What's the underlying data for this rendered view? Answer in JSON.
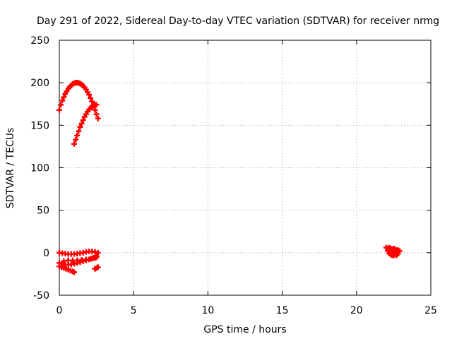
{
  "chart_data": {
    "type": "scatter",
    "title": "Day 291 of 2022, Sidereal Day-to-day VTEC variation (SDTVAR) for receiver nrmg",
    "xlabel": "GPS time / hours",
    "ylabel": "SDTVAR / TECUs",
    "xlim": [
      0,
      25
    ],
    "ylim": [
      -50,
      250
    ],
    "xticks": [
      0,
      5,
      10,
      15,
      20,
      25
    ],
    "yticks": [
      -50,
      0,
      50,
      100,
      150,
      200,
      250
    ],
    "grid": true,
    "legend": "none",
    "marker": "plus",
    "color": "#ff0000",
    "series": [
      {
        "values": [
          [
            0.0,
            168
          ],
          [
            0.1,
            174
          ],
          [
            0.2,
            179
          ],
          [
            0.3,
            183
          ],
          [
            0.4,
            187
          ],
          [
            0.5,
            190
          ],
          [
            0.6,
            193
          ],
          [
            0.7,
            195
          ],
          [
            0.8,
            197
          ],
          [
            0.9,
            198.5
          ],
          [
            1.0,
            199.5
          ],
          [
            1.1,
            200
          ],
          [
            1.2,
            200
          ],
          [
            1.3,
            199.8
          ],
          [
            1.4,
            199
          ],
          [
            1.5,
            198
          ],
          [
            1.6,
            196.5
          ],
          [
            1.7,
            194.5
          ],
          [
            1.8,
            192
          ],
          [
            1.9,
            189
          ],
          [
            2.0,
            186
          ],
          [
            2.1,
            182
          ],
          [
            2.2,
            178
          ],
          [
            2.3,
            173
          ],
          [
            2.4,
            168
          ],
          [
            2.5,
            163
          ],
          [
            2.6,
            158
          ]
        ]
      },
      {
        "values": [
          [
            1.0,
            128
          ],
          [
            1.1,
            133
          ],
          [
            1.2,
            138
          ],
          [
            1.3,
            143
          ],
          [
            1.4,
            148
          ],
          [
            1.5,
            152
          ],
          [
            1.6,
            156
          ],
          [
            1.7,
            160
          ],
          [
            1.8,
            163
          ],
          [
            1.9,
            166
          ],
          [
            2.0,
            168.5
          ],
          [
            2.1,
            170.5
          ],
          [
            2.2,
            172
          ],
          [
            2.3,
            173.5
          ],
          [
            2.4,
            174
          ],
          [
            2.5,
            174
          ]
        ]
      },
      {
        "values": [
          [
            0.0,
            0
          ],
          [
            0.2,
            -0.5
          ],
          [
            0.4,
            -1
          ],
          [
            0.6,
            -1.5
          ],
          [
            0.8,
            -1.5
          ],
          [
            1.0,
            -1.5
          ],
          [
            1.2,
            -1
          ],
          [
            1.4,
            -0.5
          ],
          [
            1.6,
            0
          ],
          [
            1.8,
            1
          ],
          [
            2.0,
            1.5
          ],
          [
            2.2,
            1.5
          ],
          [
            2.4,
            1
          ],
          [
            2.6,
            0
          ]
        ]
      },
      {
        "values": [
          [
            0.0,
            -12
          ],
          [
            0.2,
            -13
          ],
          [
            0.4,
            -14
          ],
          [
            0.6,
            -14
          ],
          [
            0.8,
            -13.5
          ],
          [
            1.0,
            -13
          ],
          [
            1.2,
            -12
          ],
          [
            1.4,
            -11
          ],
          [
            1.6,
            -10
          ],
          [
            1.8,
            -9
          ],
          [
            2.0,
            -8
          ],
          [
            2.2,
            -7
          ],
          [
            2.4,
            -6
          ],
          [
            2.5,
            -5.5
          ]
        ]
      },
      {
        "values": [
          [
            0.0,
            -16
          ],
          [
            0.15,
            -17
          ],
          [
            0.3,
            -18
          ],
          [
            0.45,
            -19
          ],
          [
            0.6,
            -20
          ],
          [
            0.75,
            -21
          ],
          [
            0.9,
            -22
          ],
          [
            1.0,
            -23
          ]
        ]
      },
      {
        "values": [
          [
            0.3,
            -10
          ],
          [
            0.6,
            -9
          ],
          [
            0.9,
            -9
          ],
          [
            1.2,
            -9
          ],
          [
            1.5,
            -8.5
          ],
          [
            1.8,
            -8
          ],
          [
            2.1,
            -7
          ],
          [
            2.3,
            -6
          ],
          [
            2.5,
            -4
          ]
        ]
      },
      {
        "values": [
          [
            2.4,
            -19
          ],
          [
            2.5,
            -18
          ],
          [
            2.6,
            -17
          ]
        ]
      },
      {
        "values": [
          [
            22.0,
            6
          ],
          [
            22.1,
            5
          ],
          [
            22.2,
            6
          ],
          [
            22.3,
            5
          ],
          [
            22.4,
            4
          ],
          [
            22.5,
            5
          ],
          [
            22.6,
            4
          ],
          [
            22.7,
            3
          ],
          [
            22.8,
            3
          ],
          [
            22.1,
            2
          ],
          [
            22.2,
            3
          ],
          [
            22.3,
            1
          ],
          [
            22.4,
            0
          ],
          [
            22.5,
            1
          ],
          [
            22.6,
            -1
          ],
          [
            22.7,
            0
          ],
          [
            22.3,
            -2
          ],
          [
            22.4,
            -3
          ],
          [
            22.5,
            -3
          ],
          [
            22.6,
            -2
          ],
          [
            22.7,
            -3
          ],
          [
            22.8,
            -1
          ],
          [
            22.9,
            2
          ],
          [
            22.2,
            -1
          ]
        ]
      }
    ]
  }
}
